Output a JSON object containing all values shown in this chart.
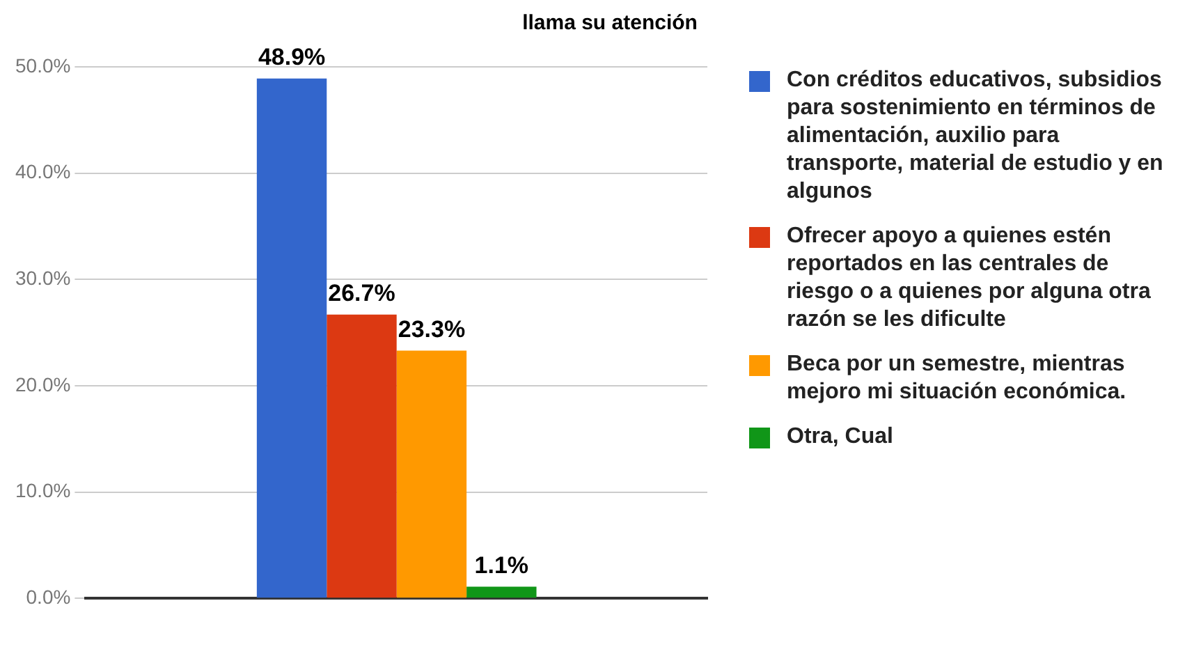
{
  "chart_data": {
    "type": "bar",
    "title": "llama su atención",
    "categories": [
      null
    ],
    "series": [
      {
        "name": "Con créditos educativos, subsidios para sostenimiento en términos de alimentación, auxilio para transporte, material de estudio y en algunos",
        "color": "#3366cc",
        "values": [
          48.9
        ]
      },
      {
        "name": "Ofrecer apoyo a quienes estén reportados en las centrales de riesgo o a quienes por alguna otra razón se les dificulte",
        "color": "#dc3912",
        "values": [
          26.7
        ]
      },
      {
        "name": "Beca por un semestre, mientras mejoro mi situación económica.",
        "color": "#ff9900",
        "values": [
          23.3
        ]
      },
      {
        "name": "Otra, Cual",
        "color": "#109618",
        "values": [
          1.1
        ]
      }
    ],
    "value_labels": [
      "48.9%",
      "26.7%",
      "23.3%",
      "1.1%"
    ],
    "ylim": [
      0,
      50
    ],
    "yticks": [
      {
        "value": 0,
        "label": "0.0%"
      },
      {
        "value": 10,
        "label": "10.0%"
      },
      {
        "value": 20,
        "label": "20.0%"
      },
      {
        "value": 30,
        "label": "30.0%"
      },
      {
        "value": 40,
        "label": "40.0%"
      },
      {
        "value": 50,
        "label": "50.0%"
      }
    ],
    "grid": "y",
    "legend": "right"
  }
}
